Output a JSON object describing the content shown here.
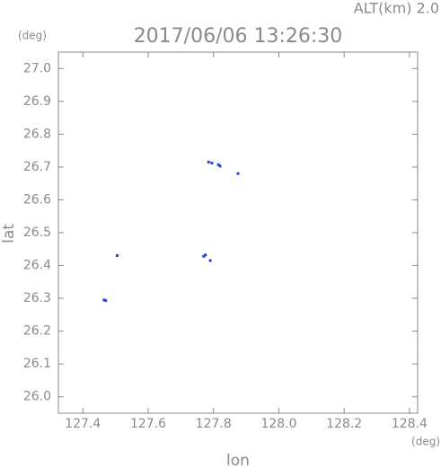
{
  "chart_data": {
    "type": "scatter",
    "title": "2017/06/06 13:26:30",
    "annotation": "ALT(km) 2.0",
    "y_unit": "(deg)",
    "x_unit": "(deg)",
    "xlabel": "lon",
    "ylabel": "lat",
    "x": [
      127.465,
      127.47,
      127.505,
      127.77,
      127.775,
      127.79,
      127.785,
      127.795,
      127.815,
      127.82,
      127.875
    ],
    "y": [
      26.295,
      26.293,
      26.43,
      26.428,
      26.432,
      26.415,
      26.715,
      26.712,
      26.707,
      26.703,
      26.68
    ],
    "color": "#2a3fd8",
    "xlim": [
      127.325,
      128.425
    ],
    "ylim": [
      25.95,
      27.05
    ],
    "xticks": [
      127.4,
      127.6,
      127.8,
      {
        "value": 128.0,
        "label": "128.0"
      },
      128.2,
      128.4
    ],
    "yticks": [
      {
        "value": 26.0,
        "label": "26.0"
      },
      26.1,
      26.2,
      26.3,
      26.4,
      26.5,
      26.6,
      26.7,
      26.8,
      26.9,
      {
        "value": 27.0,
        "label": "27.0"
      }
    ]
  }
}
